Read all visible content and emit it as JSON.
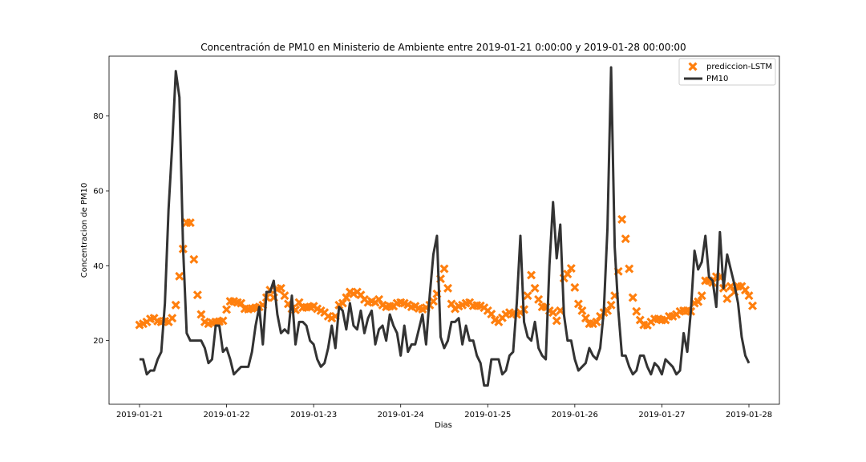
{
  "chart_data": {
    "type": "line",
    "title": "Concentración de PM10 en Ministerio de Ambiente entre 2019-01-21 0:00:00 y 2019-01-28 00:00:00",
    "xlabel": "Dias",
    "ylabel": "Concentracion de PM10",
    "x_ticks": [
      "2019-01-21",
      "2019-01-22",
      "2019-01-23",
      "2019-01-24",
      "2019-01-25",
      "2019-01-26",
      "2019-01-27",
      "2019-01-28"
    ],
    "y_ticks": [
      20,
      40,
      60,
      80
    ],
    "xlim": [
      -0.35,
      7.35
    ],
    "ylim": [
      3,
      96
    ],
    "grid": false,
    "legend_position": "top-right",
    "series": [
      {
        "name": "prediccion-LSTM",
        "type": "scatter",
        "marker": "X",
        "color": "#ff7f0e",
        "x_start": 0,
        "step_hours": 1,
        "values": [
          24.2,
          24.5,
          25,
          25.8,
          26,
          25.2,
          25,
          25.2,
          25,
          26,
          29.5,
          37.2,
          44.5,
          51.5,
          51.5,
          41.7,
          32.2,
          27,
          25,
          24.5,
          24.8,
          25,
          25.1,
          25.3,
          28.3,
          30.5,
          30.5,
          30.2,
          30,
          28.5,
          28.4,
          28.6,
          28.8,
          29,
          29.5,
          31.5,
          33.5,
          31.5,
          33.8,
          34,
          32,
          29.8,
          28.5,
          28.2,
          30.2,
          28.8,
          28.9,
          29,
          29.2,
          28.5,
          28,
          27.5,
          26.5,
          26,
          26.5,
          29.5,
          30,
          31.5,
          33,
          32.5,
          33,
          32.2,
          31,
          30.2,
          30.5,
          30.2,
          31,
          29.5,
          29,
          29.2,
          29.2,
          30,
          30.2,
          30,
          29.6,
          29,
          29.2,
          28.6,
          28.4,
          28.8,
          29.5,
          30.5,
          32.5,
          36.5,
          39.2,
          34,
          29.8,
          28.5,
          29.2,
          29.5,
          30,
          30.2,
          29.3,
          29.4,
          29.3,
          28.8,
          28,
          27.1,
          25.5,
          25,
          26.1,
          27,
          27.5,
          27.2,
          27,
          27.5,
          28.3,
          32,
          37.5,
          34,
          31,
          29,
          29,
          28,
          27.5,
          25.3,
          28,
          36.7,
          37.8,
          39.3,
          34.2,
          29.8,
          28,
          26,
          24.5,
          24.5,
          25,
          26.5,
          27.5,
          28,
          29.5,
          32,
          38.5,
          52.4,
          47.2,
          39.2,
          31.5,
          27.8,
          25.5,
          24.2,
          24.1,
          25,
          25.8,
          25.8,
          25.5,
          25.5,
          26.5,
          26.5,
          27,
          27.8,
          28,
          28,
          27.8,
          30,
          30.4,
          32,
          36,
          36,
          35.5,
          37.1,
          37,
          34,
          31.2,
          34.5,
          33,
          34.5,
          34.5,
          33.5,
          32,
          29.3
        ]
      },
      {
        "name": "PM10",
        "type": "line",
        "color": "#333333",
        "x_start": 0,
        "step_hours": 1,
        "values": [
          15,
          15,
          11,
          12,
          12,
          15,
          17,
          30,
          55,
          72,
          92,
          85,
          45,
          22,
          20,
          20,
          20,
          20,
          18,
          14,
          15,
          24,
          24,
          17,
          18,
          15,
          11,
          12,
          13,
          13,
          13,
          17,
          24,
          29,
          19,
          33,
          33,
          36,
          27,
          22,
          23,
          22,
          32,
          19,
          25,
          25,
          24,
          20,
          19,
          15,
          13,
          14,
          18,
          24,
          18,
          29,
          28,
          23,
          30,
          24,
          23,
          28,
          22,
          26,
          28,
          19,
          23,
          24,
          20,
          27,
          24,
          22,
          16,
          24,
          17,
          19,
          19,
          23,
          27,
          19,
          32,
          43,
          48,
          21,
          18,
          20,
          25,
          25,
          26,
          19,
          24,
          20,
          20,
          16,
          14,
          8,
          8,
          15,
          15,
          15,
          11,
          12,
          16,
          17,
          30,
          48,
          25,
          21,
          20,
          25,
          18,
          16,
          15,
          40,
          57,
          42,
          51,
          27,
          20,
          20,
          15,
          12,
          13,
          14,
          18,
          16,
          15,
          18,
          28,
          50,
          93,
          45,
          28,
          16,
          16,
          13,
          11,
          12,
          16,
          16,
          13,
          11,
          14,
          13,
          11,
          15,
          14,
          13,
          11,
          12,
          22,
          17,
          28,
          44,
          39,
          41,
          48,
          37,
          36,
          29,
          49,
          34,
          43,
          39,
          35,
          30,
          21,
          16,
          14
        ]
      }
    ]
  }
}
